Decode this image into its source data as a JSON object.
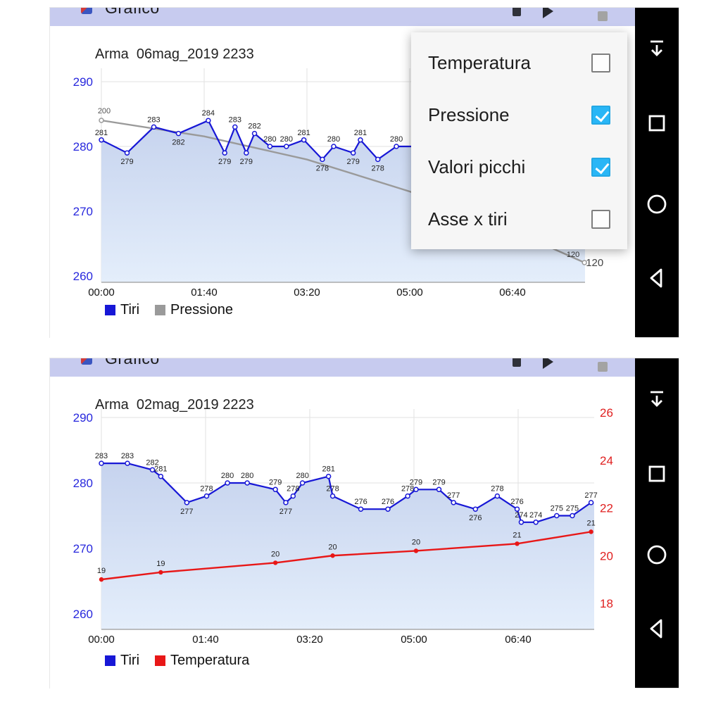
{
  "app": {
    "title": "Grafico"
  },
  "statusbar": {
    "icons": [
      "battery-icon",
      "play-icon",
      "square-icon"
    ]
  },
  "navbar": {
    "buttons": [
      {
        "icon": "hide-arrow-down-icon"
      },
      {
        "icon": "recents-square-icon"
      },
      {
        "icon": "home-circle-icon"
      },
      {
        "icon": "back-triangle-icon"
      }
    ]
  },
  "menu": {
    "checked_color": "#29b6f6",
    "items": [
      {
        "label": "Temperatura",
        "checked": false
      },
      {
        "label": "Pressione",
        "checked": true
      },
      {
        "label": "Valori picchi",
        "checked": true
      },
      {
        "label": "Asse x tiri",
        "checked": false
      }
    ]
  },
  "chart_data": [
    {
      "type": "line",
      "title": "Arma  06mag_2019 2233",
      "grid": true,
      "legend_position": "bottom-left",
      "x_axis": {
        "tick_labels": [
          "00:00",
          "01:40",
          "03:20",
          "05:00",
          "06:40"
        ],
        "tick_minutes": [
          0,
          100,
          200,
          300,
          400
        ]
      },
      "y_axis_left": {
        "ticks": [
          290,
          280,
          270,
          260
        ],
        "color": "#2727dd"
      },
      "series": [
        {
          "name": "Tiri",
          "color": "#1717d6",
          "area_fill": true,
          "minutes": [
            0,
            25,
            51,
            75,
            104,
            120,
            130,
            141,
            149,
            164,
            180,
            197,
            215,
            226,
            245,
            252,
            269,
            287
          ],
          "values": [
            281,
            279,
            283,
            282,
            284,
            279,
            283,
            279,
            282,
            280,
            280,
            281,
            278,
            280,
            279,
            281,
            278,
            280
          ]
        },
        {
          "name": "Pressione",
          "color": "#9a9a9a",
          "minutes": [
            0,
            100,
            200,
            300,
            400,
            470
          ],
          "values": [
            200,
            191,
            178,
            160,
            138,
            120
          ],
          "start_label": "200",
          "end_label": "120",
          "end_axis_label": "120"
        }
      ]
    },
    {
      "type": "line",
      "title": "Arma  02mag_2019 2223",
      "grid": true,
      "legend_position": "bottom-left",
      "x_axis": {
        "tick_labels": [
          "00:00",
          "01:40",
          "03:20",
          "05:00",
          "06:40"
        ],
        "tick_minutes": [
          0,
          100,
          200,
          300,
          400
        ]
      },
      "y_axis_left": {
        "ticks": [
          290,
          280,
          270,
          260
        ],
        "color": "#2727dd"
      },
      "y_axis_right": {
        "ticks": [
          26,
          24,
          22,
          20,
          18
        ],
        "color": "#e02020"
      },
      "series": [
        {
          "name": "Tiri",
          "color": "#1717d6",
          "area_fill": true,
          "minutes": [
            0,
            25,
            49,
            57,
            82,
            101,
            121,
            140,
            167,
            177,
            184,
            193,
            218,
            222,
            249,
            275,
            294,
            302,
            324,
            338,
            359,
            380,
            399,
            403,
            417,
            437,
            452,
            470
          ],
          "values": [
            283,
            283,
            282,
            281,
            277,
            278,
            280,
            280,
            279,
            277,
            278,
            280,
            281,
            278,
            276,
            276,
            278,
            279,
            279,
            277,
            276,
            278,
            276,
            274,
            274,
            275,
            275,
            277
          ]
        },
        {
          "name": "Temperatura",
          "color": "#e81717",
          "minutes": [
            0,
            57,
            167,
            222,
            302,
            399,
            470
          ],
          "values": [
            19,
            19.3,
            19.7,
            20,
            20.2,
            20.5,
            21
          ],
          "point_labels": [
            "19",
            "19",
            "20",
            "20",
            "20",
            "21",
            "21"
          ]
        }
      ]
    }
  ]
}
